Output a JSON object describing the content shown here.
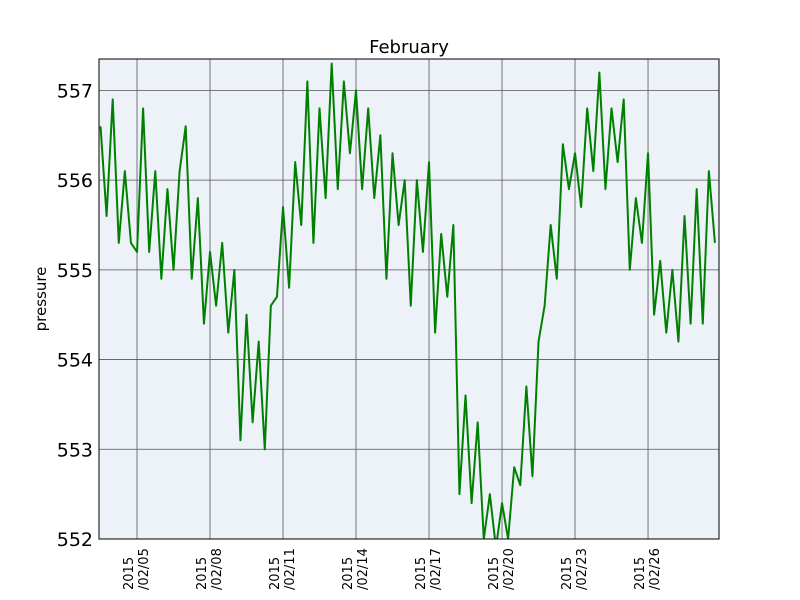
{
  "chart_data": {
    "type": "line",
    "title": "February",
    "y_label": "pressure",
    "x": [
      "2015-02-03T12:00",
      "2015-02-03T18:00",
      "2015-02-04T00:00",
      "2015-02-04T06:00",
      "2015-02-04T12:00",
      "2015-02-04T18:00",
      "2015-02-05T00:00",
      "2015-02-05T06:00",
      "2015-02-05T12:00",
      "2015-02-05T18:00",
      "2015-02-06T00:00",
      "2015-02-06T06:00",
      "2015-02-06T12:00",
      "2015-02-06T18:00",
      "2015-02-07T00:00",
      "2015-02-07T06:00",
      "2015-02-07T12:00",
      "2015-02-07T18:00",
      "2015-02-08T00:00",
      "2015-02-08T06:00",
      "2015-02-08T12:00",
      "2015-02-08T18:00",
      "2015-02-09T00:00",
      "2015-02-09T06:00",
      "2015-02-09T12:00",
      "2015-02-09T18:00",
      "2015-02-10T00:00",
      "2015-02-10T06:00",
      "2015-02-10T12:00",
      "2015-02-10T18:00",
      "2015-02-11T00:00",
      "2015-02-11T06:00",
      "2015-02-11T12:00",
      "2015-02-11T18:00",
      "2015-02-12T00:00",
      "2015-02-12T06:00",
      "2015-02-12T12:00",
      "2015-02-12T18:00",
      "2015-02-13T00:00",
      "2015-02-13T06:00",
      "2015-02-13T12:00",
      "2015-02-13T18:00",
      "2015-02-14T00:00",
      "2015-02-14T06:00",
      "2015-02-14T12:00",
      "2015-02-14T18:00",
      "2015-02-15T00:00",
      "2015-02-15T06:00",
      "2015-02-15T12:00",
      "2015-02-15T18:00",
      "2015-02-16T00:00",
      "2015-02-16T06:00",
      "2015-02-16T12:00",
      "2015-02-16T18:00",
      "2015-02-17T00:00",
      "2015-02-17T06:00",
      "2015-02-17T12:00",
      "2015-02-17T18:00",
      "2015-02-18T00:00",
      "2015-02-18T06:00",
      "2015-02-18T12:00",
      "2015-02-18T18:00",
      "2015-02-19T00:00",
      "2015-02-19T06:00",
      "2015-02-19T12:00",
      "2015-02-19T18:00",
      "2015-02-20T00:00",
      "2015-02-20T06:00",
      "2015-02-20T12:00",
      "2015-02-20T18:00",
      "2015-02-21T00:00",
      "2015-02-21T06:00",
      "2015-02-21T12:00",
      "2015-02-21T18:00",
      "2015-02-22T00:00",
      "2015-02-22T06:00",
      "2015-02-22T12:00",
      "2015-02-22T18:00",
      "2015-02-23T00:00",
      "2015-02-23T06:00",
      "2015-02-23T12:00",
      "2015-02-23T18:00",
      "2015-02-24T00:00",
      "2015-02-24T06:00",
      "2015-02-24T12:00",
      "2015-02-24T18:00",
      "2015-02-25T00:00",
      "2015-02-25T06:00",
      "2015-02-25T12:00",
      "2015-02-25T18:00",
      "2015-02-26T00:00",
      "2015-02-26T06:00",
      "2015-02-26T12:00",
      "2015-02-26T18:00",
      "2015-02-27T00:00",
      "2015-02-27T06:00",
      "2015-02-27T12:00",
      "2015-02-27T18:00",
      "2015-02-28T00:00",
      "2015-02-28T06:00",
      "2015-02-28T12:00",
      "2015-02-28T18:00"
    ],
    "series": [
      {
        "color": "#008000",
        "values": [
          556.6,
          555.6,
          556.9,
          555.3,
          556.1,
          555.3,
          555.2,
          556.8,
          555.2,
          556.1,
          554.9,
          555.9,
          555.0,
          556.1,
          556.6,
          554.9,
          555.8,
          554.4,
          555.2,
          554.6,
          555.3,
          554.3,
          555.0,
          553.1,
          554.5,
          553.3,
          554.2,
          553.0,
          554.6,
          554.7,
          555.7,
          554.8,
          556.2,
          555.5,
          557.1,
          555.3,
          556.8,
          555.8,
          557.3,
          555.9,
          557.1,
          556.3,
          557.0,
          555.9,
          556.8,
          555.8,
          556.5,
          554.9,
          556.3,
          555.5,
          556.0,
          554.6,
          556.0,
          555.2,
          556.2,
          554.3,
          555.4,
          554.7,
          555.5,
          552.5,
          553.6,
          552.4,
          553.3,
          552.0,
          552.5,
          551.9,
          552.4,
          552.0,
          552.8,
          552.6,
          553.7,
          552.7,
          554.2,
          554.6,
          555.5,
          554.9,
          556.4,
          555.9,
          556.3,
          555.7,
          556.8,
          556.1,
          557.2,
          555.9,
          556.8,
          556.2,
          556.9,
          555.0,
          555.8,
          555.3,
          556.3,
          554.5,
          555.1,
          554.3,
          555.0,
          554.2,
          555.6,
          554.4,
          555.9,
          554.4,
          556.1,
          555.3
        ]
      }
    ],
    "xlim": [
      "2015-02-03T10:30",
      "2015-02-28T22:00"
    ],
    "xticks": [
      {
        "value": "2015-02-05",
        "label": "2015\n/02/05"
      },
      {
        "value": "2015-02-08",
        "label": "2015\n/02/08"
      },
      {
        "value": "2015-02-11",
        "label": "2015\n/02/11"
      },
      {
        "value": "2015-02-14",
        "label": "2015\n/02/14"
      },
      {
        "value": "2015-02-17",
        "label": "2015\n/02/17"
      },
      {
        "value": "2015-02-20",
        "label": "2015\n/02/20"
      },
      {
        "value": "2015-02-23",
        "label": "2015\n/02/23"
      },
      {
        "value": "2015-02-26",
        "label": "2015\n/02/26"
      }
    ],
    "ylim": [
      552,
      557.35
    ],
    "yticks": [
      552,
      553,
      554,
      555,
      556,
      557
    ],
    "grid": true,
    "background": "#ecf2f8"
  }
}
